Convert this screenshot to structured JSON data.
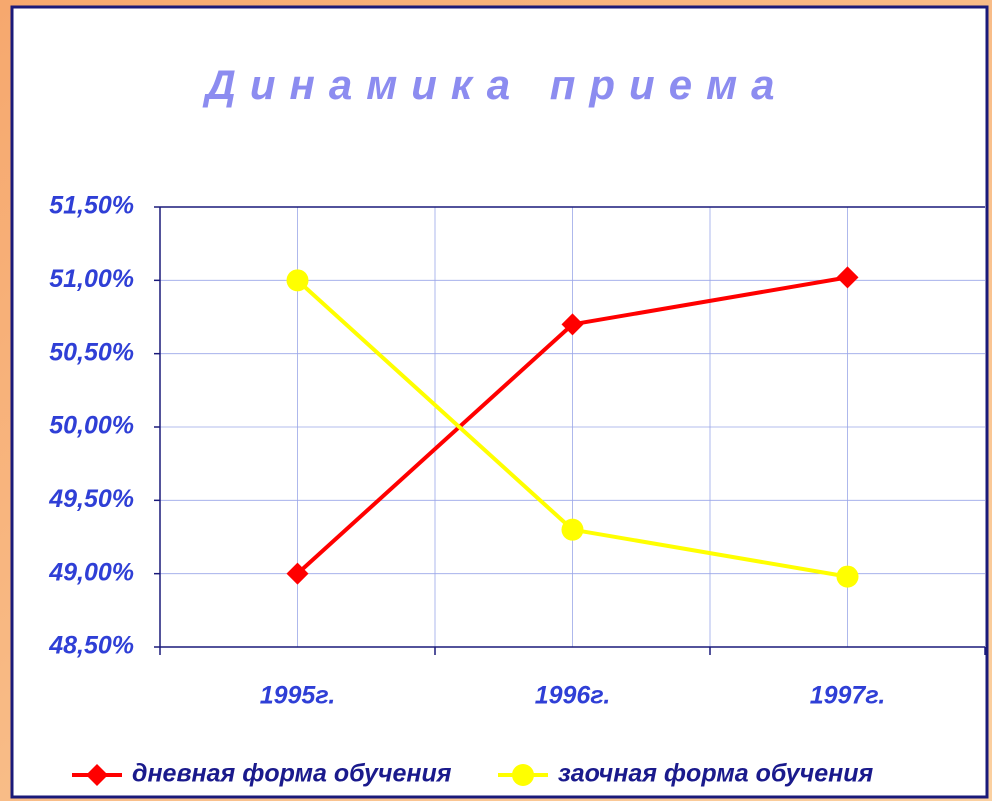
{
  "chart_data": {
    "type": "line",
    "title": "Динамика приема",
    "categories": [
      "1995г.",
      "1996г.",
      "1997г."
    ],
    "series": [
      {
        "name": "дневная форма обучения",
        "color": "#ff0000",
        "marker": "diamond",
        "values": [
          49.0,
          50.7,
          51.02
        ]
      },
      {
        "name": "заочная форма обучения",
        "color": "#ffff00",
        "marker": "circle",
        "values": [
          51.0,
          49.3,
          48.98
        ]
      }
    ],
    "ylim": [
      48.5,
      51.5
    ],
    "yticks": [
      {
        "value": 48.5,
        "label": "48,50%"
      },
      {
        "value": 49.0,
        "label": "49,00%"
      },
      {
        "value": 49.5,
        "label": "49,50%"
      },
      {
        "value": 50.0,
        "label": "50,00%"
      },
      {
        "value": 50.5,
        "label": "50,50%"
      },
      {
        "value": 51.0,
        "label": "51,00%"
      },
      {
        "value": 51.5,
        "label": "51,50%"
      }
    ],
    "grid": true,
    "legend": "bottom"
  }
}
